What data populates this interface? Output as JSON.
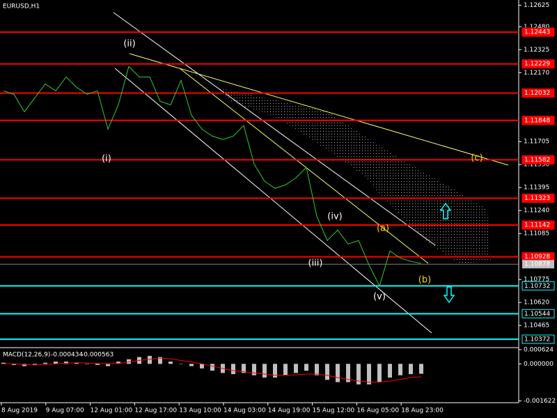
{
  "chart_data": [
    {
      "type": "line",
      "title": "EURUSD,H1",
      "ylim": [
        1.1032,
        1.1266
      ],
      "yticks": [
        1.12625,
        {
          "value": 1.1248,
          "label": "1.12480"
        },
        1.12325,
        {
          "value": 1.1217,
          "label": "1.12170"
        },
        1.11705,
        {
          "value": 1.1155,
          "label": "1.11550"
        },
        1.11395,
        {
          "value": 1.1124,
          "label": "1.11240"
        },
        1.11085,
        1.10775,
        {
          "value": 1.1062,
          "label": "1.10620"
        },
        1.10465
      ],
      "xtick_labels": [
        "8 Aug 2019",
        "9 Aug 07:00",
        "12 Aug 01:00",
        "12 Aug 17:00",
        "13 Aug 10:00",
        "14 Aug 03:00",
        "14 Aug 19:00",
        "15 Aug 12:00",
        "16 Aug 05:00",
        "18 Aug 23:00"
      ],
      "series": [
        {
          "name": "Close",
          "color": "#32cd32",
          "values": [
            1.12047,
            1.12024,
            1.11906,
            1.12,
            1.12094,
            1.12047,
            1.12141,
            1.12071,
            1.12024,
            1.12047,
            1.11789,
            1.11953,
            1.12212,
            1.12141,
            1.12141,
            1.11977,
            1.11953,
            1.12118,
            1.11883,
            1.11789,
            1.11742,
            1.11719,
            1.11742,
            1.11813,
            1.11554,
            1.11437,
            1.1139,
            1.11413,
            1.1146,
            1.11531,
            1.11202,
            1.11038,
            1.11108,
            1.11014,
            1.11038,
            1.10873,
            1.10732,
            1.10967,
            1.1092,
            1.10897,
            1.10883
          ]
        }
      ],
      "levels": [
        {
          "value": 1.12443,
          "color": "#ff0000"
        },
        {
          "value": 1.12229,
          "color": "#ff0000"
        },
        {
          "value": 1.12032,
          "color": "#ff0000"
        },
        {
          "value": 1.11848,
          "color": "#ff0000"
        },
        {
          "value": 1.11582,
          "color": "#ff0000"
        },
        {
          "value": 1.11323,
          "color": "#ff0000"
        },
        {
          "value": 1.11142,
          "color": "#ff0000"
        },
        {
          "value": 1.10928,
          "color": "#ff0000"
        },
        {
          "value": 1.10732,
          "color": "#00ffff"
        },
        {
          "value": 1.10544,
          "color": "#00ffff"
        },
        {
          "value": 1.10372,
          "color": "#00ffff"
        }
      ],
      "last_price": 1.10878,
      "annotations": [
        "(i)",
        "(ii)",
        "(iii)",
        "(iv)",
        "(v)",
        "(a)",
        "(b)",
        "(c)"
      ]
    },
    {
      "type": "bar",
      "title": "MACD(12,26,9)",
      "main_value": -0.000434,
      "signal_value": -0.000563,
      "ylim": [
        -0.0017,
        0.00068
      ],
      "yticks": [
        0.000624,
        {
          "value": 0,
          "label": "0.000000"
        },
        -0.001622
      ],
      "series": [
        {
          "name": "MACD",
          "color": "#c0c0c0",
          "values": [
            5e-05,
            -5e-05,
            -0.0001,
            -5e-05,
            5e-05,
            0.0001,
            0.0001,
            5e-05,
            0,
            -5e-05,
            -0.0001,
            0.0001,
            0.0002,
            0.0003,
            0.00035,
            0.0003,
            0.0001,
            0,
            -0.0001,
            -0.0002,
            -0.0003,
            -0.0004,
            -0.00045,
            -0.0004,
            -0.0005,
            -0.0006,
            -0.0006,
            -0.0005,
            -0.0004,
            -0.0003,
            -0.0005,
            -0.0007,
            -0.0008,
            -0.0008,
            -0.0009,
            -0.0009,
            -0.0008,
            -0.0006,
            -0.0005,
            -0.00045,
            -0.000434
          ]
        },
        {
          "name": "Signal",
          "color": "#ff0000",
          "values": [
            0,
            0,
            -3e-05,
            -5e-05,
            -3e-05,
            0,
            3e-05,
            5e-05,
            4e-05,
            2e-05,
            0,
            2e-05,
            8e-05,
            0.00015,
            0.0002,
            0.00025,
            0.00022,
            0.00015,
            8e-05,
            0,
            -0.0001,
            -0.0002,
            -0.0003,
            -0.00035,
            -0.0004,
            -0.00045,
            -0.0005,
            -0.0005,
            -0.00048,
            -0.00045,
            -0.00045,
            -0.0005,
            -0.0006,
            -0.00068,
            -0.00075,
            -0.0008,
            -0.0008,
            -0.00075,
            -0.00068,
            -0.0006,
            -0.000563
          ]
        }
      ]
    }
  ]
}
